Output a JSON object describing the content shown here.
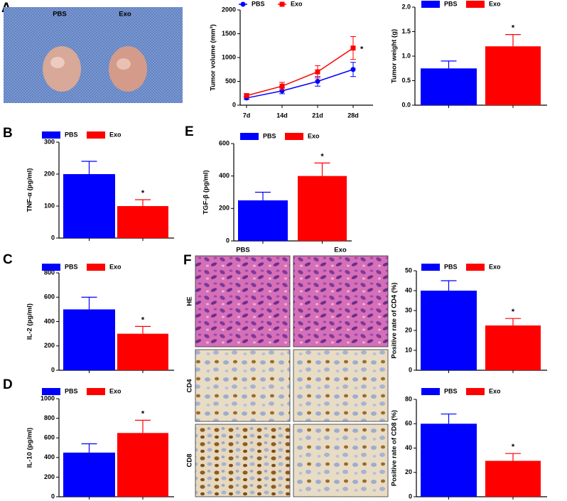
{
  "photo": {
    "panel": "A",
    "labels": [
      "PBS",
      "Exo"
    ]
  },
  "histology": {
    "panel": "F",
    "columns": [
      "PBS",
      "Exo"
    ],
    "rows": [
      "HE",
      "CD4",
      "CD8"
    ]
  },
  "chart_data": [
    {
      "type": "line",
      "ylabel": "Tumor volume (mm³)",
      "categories": [
        "7d",
        "14d",
        "21d",
        "28d"
      ],
      "series": [
        {
          "name": "PBS",
          "color": "#0000ff",
          "marker": "circle",
          "values": [
            150,
            300,
            500,
            750
          ],
          "errors": [
            30,
            60,
            100,
            150
          ]
        },
        {
          "name": "Exo",
          "color": "#ff0000",
          "marker": "square",
          "values": [
            200,
            400,
            700,
            1200
          ],
          "errors": [
            40,
            80,
            130,
            240
          ]
        }
      ],
      "ylim": [
        0,
        2000
      ],
      "yticks": [
        0,
        500,
        1000,
        1500,
        2000
      ],
      "annotation": "*"
    },
    {
      "type": "bar",
      "ylabel": "Tumor weight (g)",
      "series": [
        {
          "name": "PBS",
          "color": "#0000ff",
          "values": [
            0.75
          ],
          "errors": [
            0.15
          ]
        },
        {
          "name": "Exo",
          "color": "#ff0000",
          "values": [
            1.2
          ],
          "errors": [
            0.24
          ]
        }
      ],
      "ylim": [
        0,
        2.0
      ],
      "yticks": [
        {
          "value": 0,
          "label": "0.0"
        },
        {
          "value": 0.5,
          "label": "0.5"
        },
        {
          "value": 1,
          "label": "1.0"
        },
        {
          "value": 1.5,
          "label": "1.5"
        },
        {
          "value": 2,
          "label": "2.0"
        }
      ],
      "annotation": "*"
    },
    {
      "type": "bar",
      "panel": "B",
      "ylabel": "TNF-α (pg/ml)",
      "series": [
        {
          "name": "PBS",
          "color": "#0000ff",
          "values": [
            200
          ],
          "errors": [
            40
          ]
        },
        {
          "name": "Exo",
          "color": "#ff0000",
          "values": [
            100
          ],
          "errors": [
            20
          ]
        }
      ],
      "ylim": [
        0,
        300
      ],
      "yticks": [
        0,
        100,
        200,
        300
      ],
      "annotation": "*"
    },
    {
      "type": "bar",
      "panel": "E",
      "ylabel": "TGF-β (pg/ml)",
      "series": [
        {
          "name": "PBS",
          "color": "#0000ff",
          "values": [
            250
          ],
          "errors": [
            50
          ]
        },
        {
          "name": "Exo",
          "color": "#ff0000",
          "values": [
            400
          ],
          "errors": [
            80
          ]
        }
      ],
      "ylim": [
        0,
        600
      ],
      "yticks": [
        0,
        200,
        400,
        600
      ],
      "annotation": "*"
    },
    {
      "type": "bar",
      "panel": "C",
      "ylabel": "IL-2 (pg/ml)",
      "series": [
        {
          "name": "PBS",
          "color": "#0000ff",
          "values": [
            500
          ],
          "errors": [
            100
          ]
        },
        {
          "name": "Exo",
          "color": "#ff0000",
          "values": [
            300
          ],
          "errors": [
            60
          ]
        }
      ],
      "ylim": [
        0,
        800
      ],
      "yticks": [
        0,
        200,
        400,
        600,
        800
      ],
      "annotation": "*"
    },
    {
      "type": "bar",
      "panel": "D",
      "ylabel": "IL-10 (pg/ml)",
      "series": [
        {
          "name": "PBS",
          "color": "#0000ff",
          "values": [
            450
          ],
          "errors": [
            90
          ]
        },
        {
          "name": "Exo",
          "color": "#ff0000",
          "values": [
            650
          ],
          "errors": [
            130
          ]
        }
      ],
      "ylim": [
        0,
        1000
      ],
      "yticks": [
        0,
        200,
        400,
        600,
        800,
        1000
      ],
      "annotation": "*"
    },
    {
      "type": "bar",
      "ylabel": "Positive rate of CD4 (%)",
      "series": [
        {
          "name": "PBS",
          "color": "#0000ff",
          "values": [
            40
          ],
          "errors": [
            5
          ]
        },
        {
          "name": "Exo",
          "color": "#ff0000",
          "values": [
            22.5
          ],
          "errors": [
            3.5
          ]
        }
      ],
      "ylim": [
        0,
        50
      ],
      "yticks": [
        0,
        10,
        20,
        30,
        40,
        50
      ],
      "annotation": "*"
    },
    {
      "type": "bar",
      "ylabel": "Positive rate of CD8 (%)",
      "series": [
        {
          "name": "PBS",
          "color": "#0000ff",
          "values": [
            60
          ],
          "errors": [
            8
          ]
        },
        {
          "name": "Exo",
          "color": "#ff0000",
          "values": [
            29.5
          ],
          "errors": [
            6
          ]
        }
      ],
      "ylim": [
        0,
        80
      ],
      "yticks": [
        0,
        20,
        40,
        60,
        80
      ],
      "annotation": "*"
    }
  ]
}
